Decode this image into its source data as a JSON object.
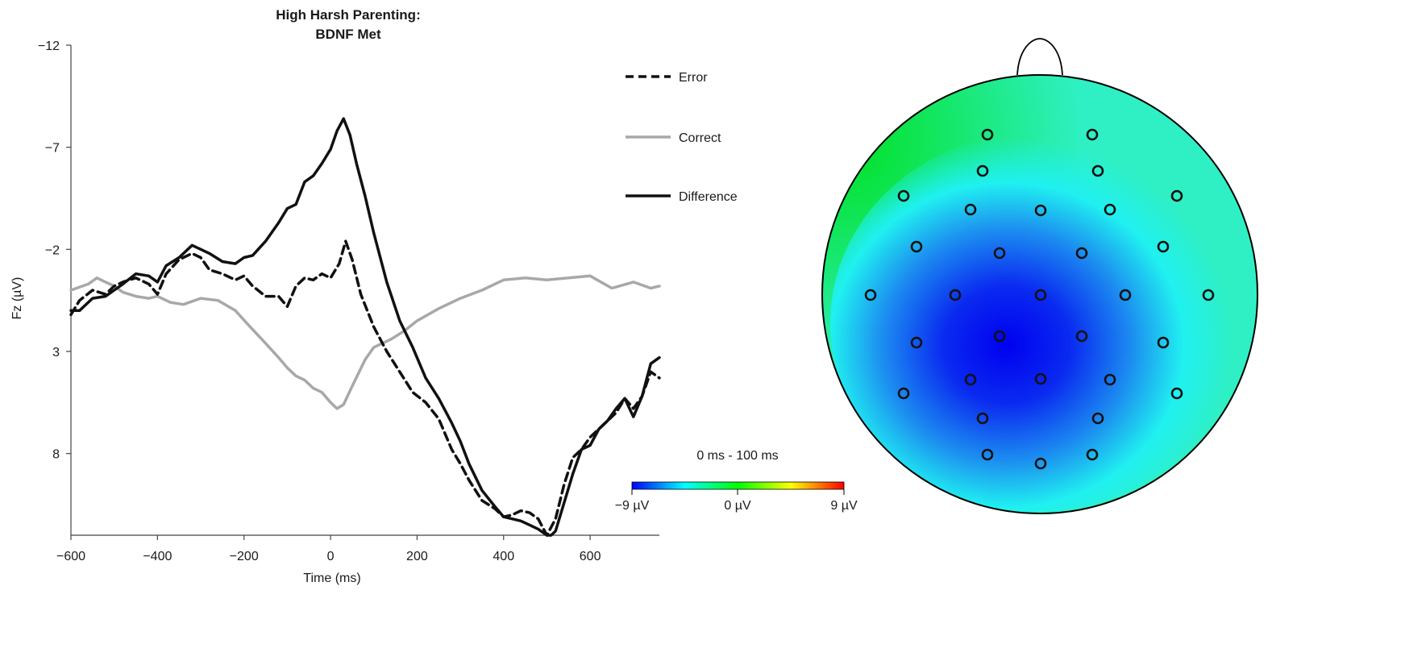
{
  "chart_data": [
    {
      "type": "line",
      "title": "High Harsh Parenting:",
      "subtitle": "BDNF Met",
      "xlabel": "Time (ms)",
      "ylabel": "Fz (µV)",
      "xlim": [
        -600,
        760
      ],
      "ylim": [
        -12,
        12
      ],
      "y_inverted": true,
      "x_ticks": [
        -600,
        -400,
        -200,
        0,
        200,
        400,
        600
      ],
      "x_tick_labels": [
        "−600",
        "−400",
        "−200",
        "0",
        "200",
        "400",
        "600"
      ],
      "y_ticks": [
        -12,
        -7,
        -2,
        3,
        8
      ],
      "y_tick_labels": [
        "−12",
        "−7",
        "−2",
        "3",
        "8"
      ],
      "grid": false,
      "legend_placement": "top-right",
      "series": [
        {
          "name": "Error",
          "style": "dashed",
          "color": "#111111",
          "x": [
            -600,
            -580,
            -550,
            -520,
            -500,
            -480,
            -450,
            -420,
            -400,
            -380,
            -350,
            -320,
            -300,
            -280,
            -250,
            -220,
            -200,
            -180,
            -150,
            -120,
            -100,
            -80,
            -60,
            -40,
            -20,
            0,
            20,
            35,
            50,
            70,
            100,
            130,
            160,
            190,
            220,
            250,
            280,
            300,
            320,
            350,
            380,
            400,
            420,
            440,
            460,
            480,
            500,
            520,
            540,
            560,
            580,
            600,
            620,
            640,
            660,
            680,
            700,
            720,
            740,
            760
          ],
          "y": [
            1.2,
            0.5,
            0.0,
            0.2,
            -0.2,
            -0.4,
            -0.6,
            -0.3,
            0.2,
            -0.8,
            -1.5,
            -1.8,
            -1.6,
            -1.0,
            -0.8,
            -0.5,
            -0.7,
            -0.2,
            0.3,
            0.3,
            0.8,
            -0.2,
            -0.6,
            -0.5,
            -0.8,
            -0.6,
            -1.3,
            -2.4,
            -1.5,
            0.2,
            1.8,
            3.0,
            4.0,
            5.0,
            5.5,
            6.3,
            7.8,
            8.5,
            9.3,
            10.3,
            10.7,
            11.1,
            11.0,
            10.8,
            10.9,
            11.2,
            12.0,
            11.2,
            9.5,
            8.2,
            7.8,
            7.2,
            6.8,
            6.4,
            6.0,
            5.3,
            5.8,
            5.2,
            4.0,
            4.3
          ]
        },
        {
          "name": "Correct",
          "style": "solid",
          "color": "#a8a8a8",
          "x": [
            -600,
            -560,
            -540,
            -520,
            -500,
            -480,
            -450,
            -420,
            -400,
            -370,
            -340,
            -300,
            -260,
            -220,
            -190,
            -150,
            -120,
            -100,
            -80,
            -60,
            -40,
            -20,
            0,
            15,
            30,
            50,
            80,
            100,
            140,
            170,
            200,
            250,
            300,
            350,
            400,
            450,
            500,
            550,
            600,
            650,
            700,
            740,
            760
          ],
          "y": [
            0.0,
            -0.3,
            -0.6,
            -0.4,
            -0.2,
            0.1,
            0.3,
            0.4,
            0.3,
            0.6,
            0.7,
            0.4,
            0.5,
            1.0,
            1.7,
            2.6,
            3.3,
            3.8,
            4.2,
            4.4,
            4.8,
            5.0,
            5.5,
            5.8,
            5.6,
            4.7,
            3.4,
            2.8,
            2.4,
            2.0,
            1.5,
            0.9,
            0.4,
            0.0,
            -0.5,
            -0.6,
            -0.5,
            -0.6,
            -0.7,
            -0.1,
            -0.4,
            -0.1,
            -0.2
          ]
        },
        {
          "name": "Difference",
          "style": "solid",
          "color": "#111111",
          "x": [
            -600,
            -580,
            -550,
            -520,
            -500,
            -480,
            -450,
            -420,
            -400,
            -380,
            -350,
            -320,
            -300,
            -280,
            -250,
            -220,
            -200,
            -180,
            -150,
            -120,
            -100,
            -80,
            -60,
            -40,
            -20,
            0,
            15,
            30,
            45,
            60,
            80,
            100,
            130,
            160,
            190,
            220,
            250,
            280,
            300,
            320,
            350,
            380,
            400,
            420,
            440,
            460,
            480,
            500,
            510,
            520,
            540,
            560,
            580,
            600,
            620,
            640,
            660,
            680,
            700,
            720,
            740,
            760
          ],
          "y": [
            1.0,
            1.0,
            0.4,
            0.3,
            0.0,
            -0.3,
            -0.8,
            -0.7,
            -0.4,
            -1.2,
            -1.6,
            -2.2,
            -2.0,
            -1.8,
            -1.4,
            -1.3,
            -1.6,
            -1.7,
            -2.4,
            -3.3,
            -4.0,
            -4.2,
            -5.3,
            -5.6,
            -6.2,
            -6.9,
            -7.8,
            -8.4,
            -7.6,
            -6.2,
            -4.6,
            -2.8,
            -0.4,
            1.5,
            2.8,
            4.3,
            5.3,
            6.5,
            7.4,
            8.5,
            9.8,
            10.6,
            11.1,
            11.2,
            11.3,
            11.5,
            11.7,
            12.0,
            12.0,
            11.8,
            10.4,
            9.0,
            7.8,
            7.6,
            6.8,
            6.4,
            5.8,
            5.3,
            6.2,
            5.2,
            3.6,
            3.3
          ]
        }
      ]
    },
    {
      "type": "heatmap",
      "title": "0 ms - 100 ms",
      "colorbar_range": [
        -9,
        9
      ],
      "colorbar_tick_labels": [
        "−9 µV",
        "0 µV",
        "9 µV"
      ],
      "colormap": [
        "#0000ff",
        "#00ffff",
        "#00ff00",
        "#ffff00",
        "#ff0000"
      ],
      "electrodes_count": 35
    }
  ]
}
